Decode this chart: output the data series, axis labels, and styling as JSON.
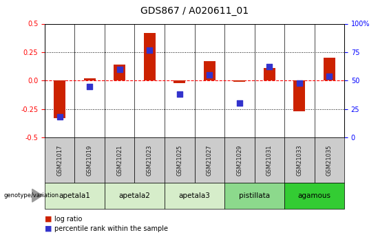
{
  "title": "GDS867 / A020611_01",
  "samples": [
    "GSM21017",
    "GSM21019",
    "GSM21021",
    "GSM21023",
    "GSM21025",
    "GSM21027",
    "GSM21029",
    "GSM21031",
    "GSM21033",
    "GSM21035"
  ],
  "log_ratio": [
    -0.33,
    0.02,
    0.14,
    0.42,
    -0.02,
    0.17,
    -0.01,
    0.11,
    -0.27,
    0.2
  ],
  "percentile_rank": [
    18,
    45,
    60,
    77,
    38,
    55,
    30,
    62,
    48,
    54
  ],
  "groups": [
    {
      "label": "apetala1",
      "samples": [
        0,
        1
      ]
    },
    {
      "label": "apetala2",
      "samples": [
        2,
        3
      ]
    },
    {
      "label": "apetala3",
      "samples": [
        4,
        5
      ]
    },
    {
      "label": "pistillata",
      "samples": [
        6,
        7
      ]
    },
    {
      "label": "agamous",
      "samples": [
        8,
        9
      ]
    }
  ],
  "group_colors": [
    "#d6edca",
    "#d6edca",
    "#d6edca",
    "#8cd98c",
    "#33cc33"
  ],
  "ylim_left": [
    -0.5,
    0.5
  ],
  "ylim_right": [
    0,
    100
  ],
  "yticks_left": [
    -0.5,
    -0.25,
    0.0,
    0.25,
    0.5
  ],
  "yticks_right": [
    0,
    25,
    50,
    75,
    100
  ],
  "hline_dotted": [
    0.25,
    -0.25
  ],
  "bar_color": "#cc2200",
  "dot_color": "#3333cc",
  "bar_width": 0.4,
  "dot_size": 28,
  "legend_entries": [
    "log ratio",
    "percentile rank within the sample"
  ],
  "legend_colors": [
    "#cc2200",
    "#3333cc"
  ],
  "genotype_label": "genotype/variation",
  "background_sample_row": "#cccccc",
  "title_fontsize": 10,
  "tick_fontsize": 7,
  "sample_fontsize": 6,
  "group_fontsize": 7.5,
  "legend_fontsize": 7
}
